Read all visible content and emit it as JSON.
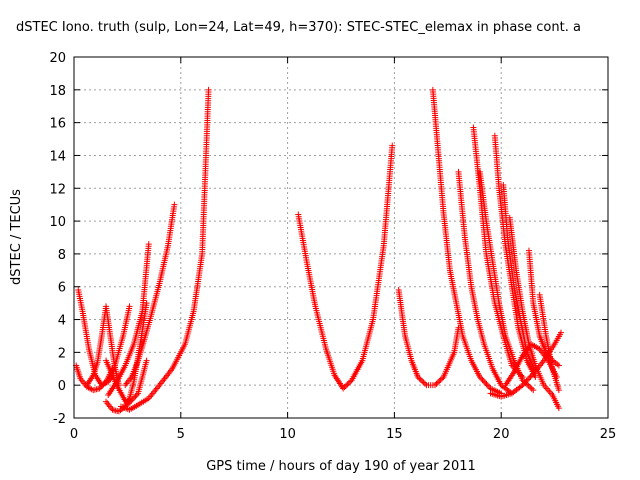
{
  "chart_data": {
    "type": "scatter",
    "title": "dSTEC Iono. truth (sulp, Lon=24, Lat=49, h=370): STEC-STEC_elemax in phase cont. a",
    "xlabel": "GPS time / hours of day 190 of year 2011",
    "ylabel": "dSTEC  / TECUs",
    "xlim": [
      0,
      25
    ],
    "ylim": [
      -2,
      20
    ],
    "xticks": [
      0,
      5,
      10,
      15,
      20,
      25
    ],
    "yticks": [
      -2,
      0,
      2,
      4,
      6,
      8,
      10,
      12,
      14,
      16,
      18,
      20
    ],
    "grid": true,
    "marker": "plus",
    "color": "#ff0000",
    "series": [
      {
        "x": [
          0.1,
          0.3,
          0.6,
          0.9,
          1.2,
          1.5,
          1.8
        ],
        "y": [
          1.2,
          0.4,
          -0.1,
          -0.3,
          -0.2,
          0.2,
          1.0
        ]
      },
      {
        "x": [
          0.2,
          0.4,
          0.7,
          1.0,
          1.3
        ],
        "y": [
          5.8,
          4.5,
          2.2,
          0.6,
          0.0
        ]
      },
      {
        "x": [
          0.6,
          0.9,
          1.1,
          1.3,
          1.5,
          1.7,
          1.9,
          2.1
        ],
        "y": [
          0.0,
          0.6,
          1.4,
          3.0,
          4.8,
          3.0,
          1.2,
          0.0
        ]
      },
      {
        "x": [
          1.4,
          1.6,
          1.8,
          2.0,
          2.3,
          2.6
        ],
        "y": [
          0.1,
          0.2,
          0.6,
          1.6,
          3.0,
          4.8
        ]
      },
      {
        "x": [
          1.5,
          1.8,
          2.1,
          2.4,
          2.6,
          2.8,
          3.1,
          3.4
        ],
        "y": [
          -1.0,
          -1.5,
          -1.6,
          -1.3,
          -0.8,
          0.2,
          2.5,
          5.0
        ]
      },
      {
        "x": [
          1.5,
          2.0,
          2.5,
          3.0,
          3.4
        ],
        "y": [
          1.5,
          0.0,
          -1.2,
          -0.5,
          1.5
        ]
      },
      {
        "x": [
          2.4,
          2.7,
          3.0,
          3.3,
          3.6,
          4.0,
          4.4,
          4.7
        ],
        "y": [
          0.0,
          0.5,
          1.5,
          2.8,
          4.2,
          6.2,
          8.5,
          11.0
        ]
      },
      {
        "x": [
          2.2,
          2.6,
          3.0,
          3.5,
          4.0,
          4.6,
          5.2,
          5.6,
          6.0,
          6.3
        ],
        "y": [
          -1.3,
          -1.5,
          -1.2,
          -0.8,
          0.0,
          1.0,
          2.5,
          4.5,
          8.0,
          18.0
        ]
      },
      {
        "x": [
          1.6,
          2.0,
          2.4,
          2.8,
          3.2,
          3.5
        ],
        "y": [
          -0.6,
          0.2,
          1.2,
          2.5,
          4.5,
          8.6
        ]
      },
      {
        "x": [
          10.5,
          10.9,
          11.3,
          11.8,
          12.2,
          12.6,
          13.0,
          13.5,
          14.0,
          14.5,
          14.9
        ],
        "y": [
          10.4,
          7.5,
          4.8,
          2.2,
          0.6,
          -0.2,
          0.3,
          1.5,
          4.0,
          8.5,
          14.6
        ]
      },
      {
        "x": [
          15.2,
          15.5,
          15.8,
          16.1,
          16.5,
          16.9,
          17.3,
          17.8,
          18.0
        ],
        "y": [
          5.8,
          3.0,
          1.5,
          0.5,
          0.0,
          0.0,
          0.5,
          2.0,
          3.5
        ]
      },
      {
        "x": [
          16.8,
          17.0,
          17.3,
          17.6,
          17.9,
          18.2,
          18.6,
          19.0,
          19.5,
          20.0
        ],
        "y": [
          18.0,
          15.0,
          10.5,
          7.0,
          5.0,
          3.0,
          1.5,
          0.5,
          -0.2,
          -0.5
        ]
      },
      {
        "x": [
          18.0,
          18.3,
          18.6,
          18.9,
          19.2,
          19.6,
          20.0,
          20.5
        ],
        "y": [
          13.0,
          9.0,
          6.0,
          4.0,
          2.5,
          1.0,
          0.0,
          -0.5
        ]
      },
      {
        "x": [
          18.7,
          19.0,
          19.3,
          19.7,
          20.1,
          20.5,
          21.0
        ],
        "y": [
          15.7,
          12.0,
          8.0,
          5.0,
          3.0,
          1.2,
          0.5
        ]
      },
      {
        "x": [
          19.0,
          19.3,
          19.6,
          19.9,
          20.2,
          20.6,
          21.0,
          21.5
        ],
        "y": [
          13.0,
          10.0,
          7.5,
          5.0,
          3.0,
          1.5,
          0.3,
          -0.3
        ]
      },
      {
        "x": [
          19.7,
          19.9,
          20.2,
          20.5,
          20.8,
          21.2,
          21.6
        ],
        "y": [
          15.2,
          12.0,
          8.5,
          6.0,
          3.5,
          1.5,
          0.5
        ]
      },
      {
        "x": [
          20.1,
          20.3,
          20.6,
          20.9,
          21.2,
          21.6
        ],
        "y": [
          12.2,
          9.0,
          6.0,
          4.0,
          2.0,
          0.8
        ]
      },
      {
        "x": [
          20.4,
          20.7,
          21.0,
          21.3,
          21.6,
          22.0,
          22.4,
          22.7
        ],
        "y": [
          10.2,
          7.0,
          4.5,
          2.5,
          1.2,
          0.0,
          -0.6,
          -1.4
        ]
      },
      {
        "x": [
          21.3,
          21.5,
          21.8,
          22.1,
          22.4,
          22.7
        ],
        "y": [
          8.2,
          5.0,
          3.0,
          2.0,
          1.5,
          1.2
        ]
      },
      {
        "x": [
          19.5,
          20.0,
          20.5,
          21.0,
          21.5,
          22.0,
          22.5,
          22.8
        ],
        "y": [
          -0.5,
          -0.7,
          -0.5,
          0.0,
          0.7,
          1.5,
          2.5,
          3.2
        ]
      },
      {
        "x": [
          20.2,
          20.6,
          21.0,
          21.4,
          21.8,
          22.2,
          22.6
        ],
        "y": [
          0.0,
          0.8,
          1.8,
          2.5,
          2.2,
          1.5,
          0.5
        ]
      },
      {
        "x": [
          21.8,
          22.1,
          22.4,
          22.7
        ],
        "y": [
          5.5,
          3.0,
          1.0,
          -0.3
        ]
      }
    ]
  }
}
